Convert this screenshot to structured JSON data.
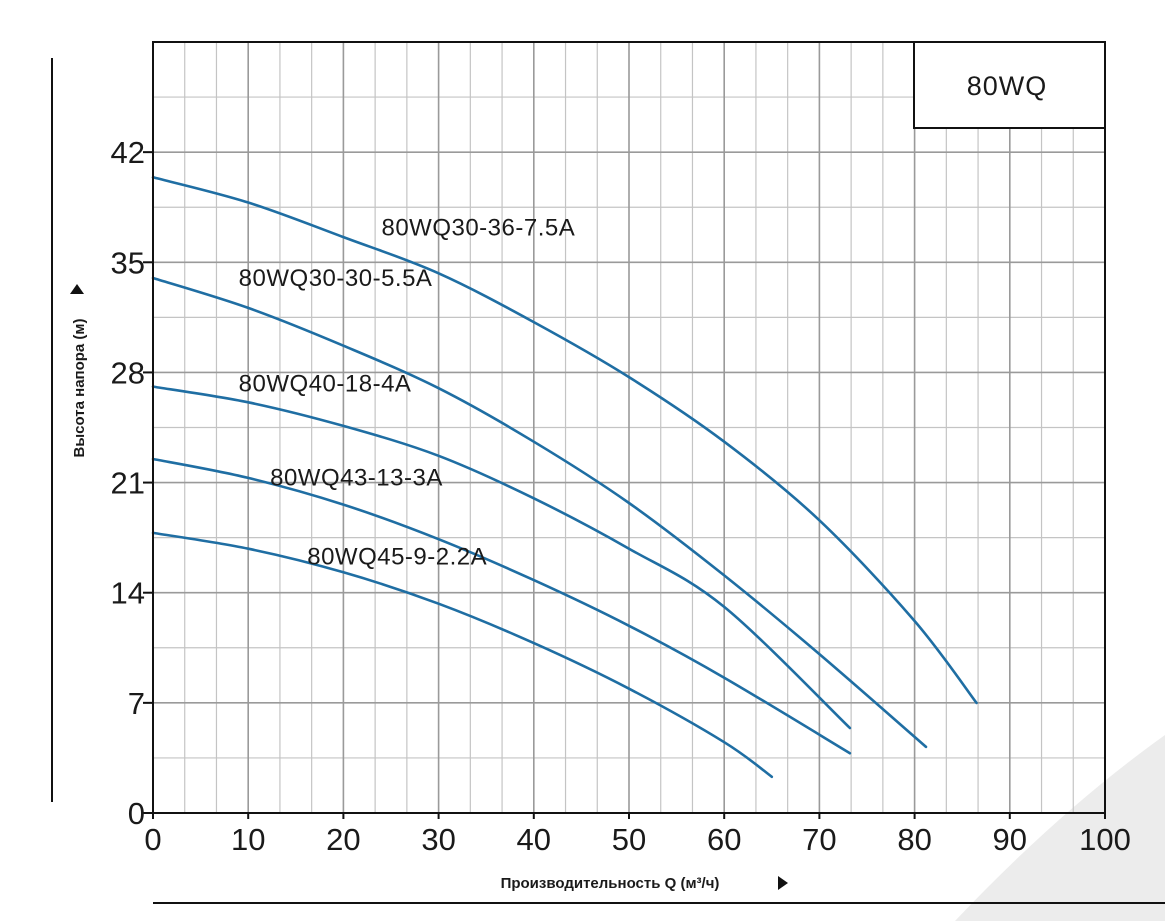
{
  "chart_data": {
    "type": "line",
    "title": "80WQ",
    "xlabel": "Производительность Q (м³/ч)",
    "ylabel": "Высота напора (м)",
    "xlim": [
      0,
      100
    ],
    "ylim": [
      0,
      49
    ],
    "x_ticks": [
      0,
      10,
      20,
      30,
      40,
      50,
      60,
      70,
      80,
      90,
      100
    ],
    "y_ticks": [
      0,
      7,
      14,
      21,
      28,
      35,
      42
    ],
    "grid": true,
    "line_color": "#1f6ea3",
    "series": [
      {
        "name": "80WQ30-36-7.5A",
        "points": [
          [
            0,
            40.4
          ],
          [
            10,
            38.8
          ],
          [
            20,
            36.6
          ],
          [
            30,
            34.3
          ],
          [
            40,
            31.2
          ],
          [
            50,
            27.7
          ],
          [
            60,
            23.6
          ],
          [
            70,
            18.6
          ],
          [
            80,
            12.2
          ],
          [
            86.5,
            7.0
          ]
        ]
      },
      {
        "name": "80WQ30-30-5.5A",
        "points": [
          [
            0,
            34.0
          ],
          [
            10,
            32.1
          ],
          [
            20,
            29.7
          ],
          [
            30,
            27.0
          ],
          [
            40,
            23.6
          ],
          [
            50,
            19.7
          ],
          [
            60,
            15.1
          ],
          [
            70,
            10.1
          ],
          [
            81.2,
            4.2
          ]
        ]
      },
      {
        "name": "80WQ40-18-4A",
        "points": [
          [
            0,
            27.1
          ],
          [
            10,
            26.1
          ],
          [
            20,
            24.6
          ],
          [
            30,
            22.7
          ],
          [
            40,
            20.0
          ],
          [
            50,
            16.8
          ],
          [
            60,
            13.1
          ],
          [
            73.2,
            5.4
          ]
        ]
      },
      {
        "name": "80WQ43-13-3A",
        "points": [
          [
            0,
            22.5
          ],
          [
            10,
            21.3
          ],
          [
            20,
            19.6
          ],
          [
            30,
            17.4
          ],
          [
            40,
            14.8
          ],
          [
            50,
            11.9
          ],
          [
            60,
            8.6
          ],
          [
            73.2,
            3.8
          ]
        ]
      },
      {
        "name": "80WQ45-9-2.2A",
        "points": [
          [
            0,
            17.8
          ],
          [
            10,
            16.8
          ],
          [
            20,
            15.3
          ],
          [
            30,
            13.3
          ],
          [
            40,
            10.8
          ],
          [
            50,
            7.9
          ],
          [
            60,
            4.5
          ],
          [
            65,
            2.3
          ]
        ]
      }
    ]
  }
}
